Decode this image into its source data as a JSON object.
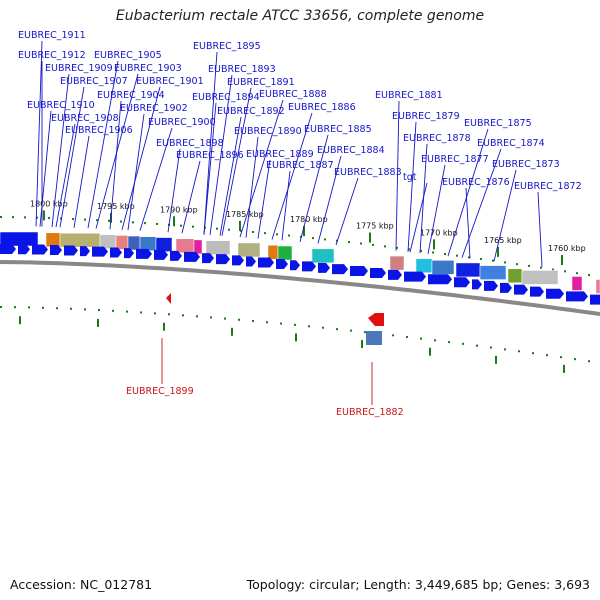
{
  "title": "Eubacterium rectale ATCC 33656, complete genome",
  "footer": {
    "accession": "Accession: NC_012781",
    "topology": "Topology: circular; Length: 3,449,685 bp; Genes: 3,693"
  },
  "colors": {
    "gene_label": "#1515c8",
    "rna_label": "#c81515",
    "arrow": "#0a14e6",
    "backbone": "#888888",
    "tick": "#1a7a1a"
  },
  "kbp_ticks": [
    "1800 kbp",
    "1795 kbp",
    "1790 kbp",
    "1785 kbp",
    "1780 kbp",
    "1775 kbp",
    "1770 kbp",
    "1765 kbp",
    "1760 kbp"
  ],
  "gene_labels": [
    "EUBREC_1911",
    "EUBREC_1912",
    "EUBREC_1909",
    "EUBREC_1907",
    "EUBREC_1910",
    "EUBREC_1908",
    "EUBREC_1906",
    "EUBREC_1905",
    "EUBREC_1903",
    "EUBREC_1904",
    "EUBREC_1901",
    "EUBREC_1902",
    "EUBREC_1900",
    "EUBREC_1898",
    "EUBREC_1896",
    "EUBREC_1895",
    "EUBREC_1893",
    "EUBREC_1894",
    "EUBREC_1891",
    "EUBREC_1892",
    "EUBREC_1888",
    "EUBREC_1890",
    "EUBREC_1889",
    "EUBREC_1886",
    "EUBREC_1887",
    "EUBREC_1885",
    "EUBREC_1884",
    "EUBREC_1883",
    "EUBREC_1881",
    "EUBREC_1879",
    "tgt",
    "EUBREC_1878",
    "EUBREC_1877",
    "EUBREC_1875",
    "EUBREC_1874",
    "EUBREC_1876",
    "EUBREC_1873",
    "EUBREC_1872"
  ],
  "rna_labels": [
    "EUBREC_1899",
    "EUBREC_1882"
  ]
}
